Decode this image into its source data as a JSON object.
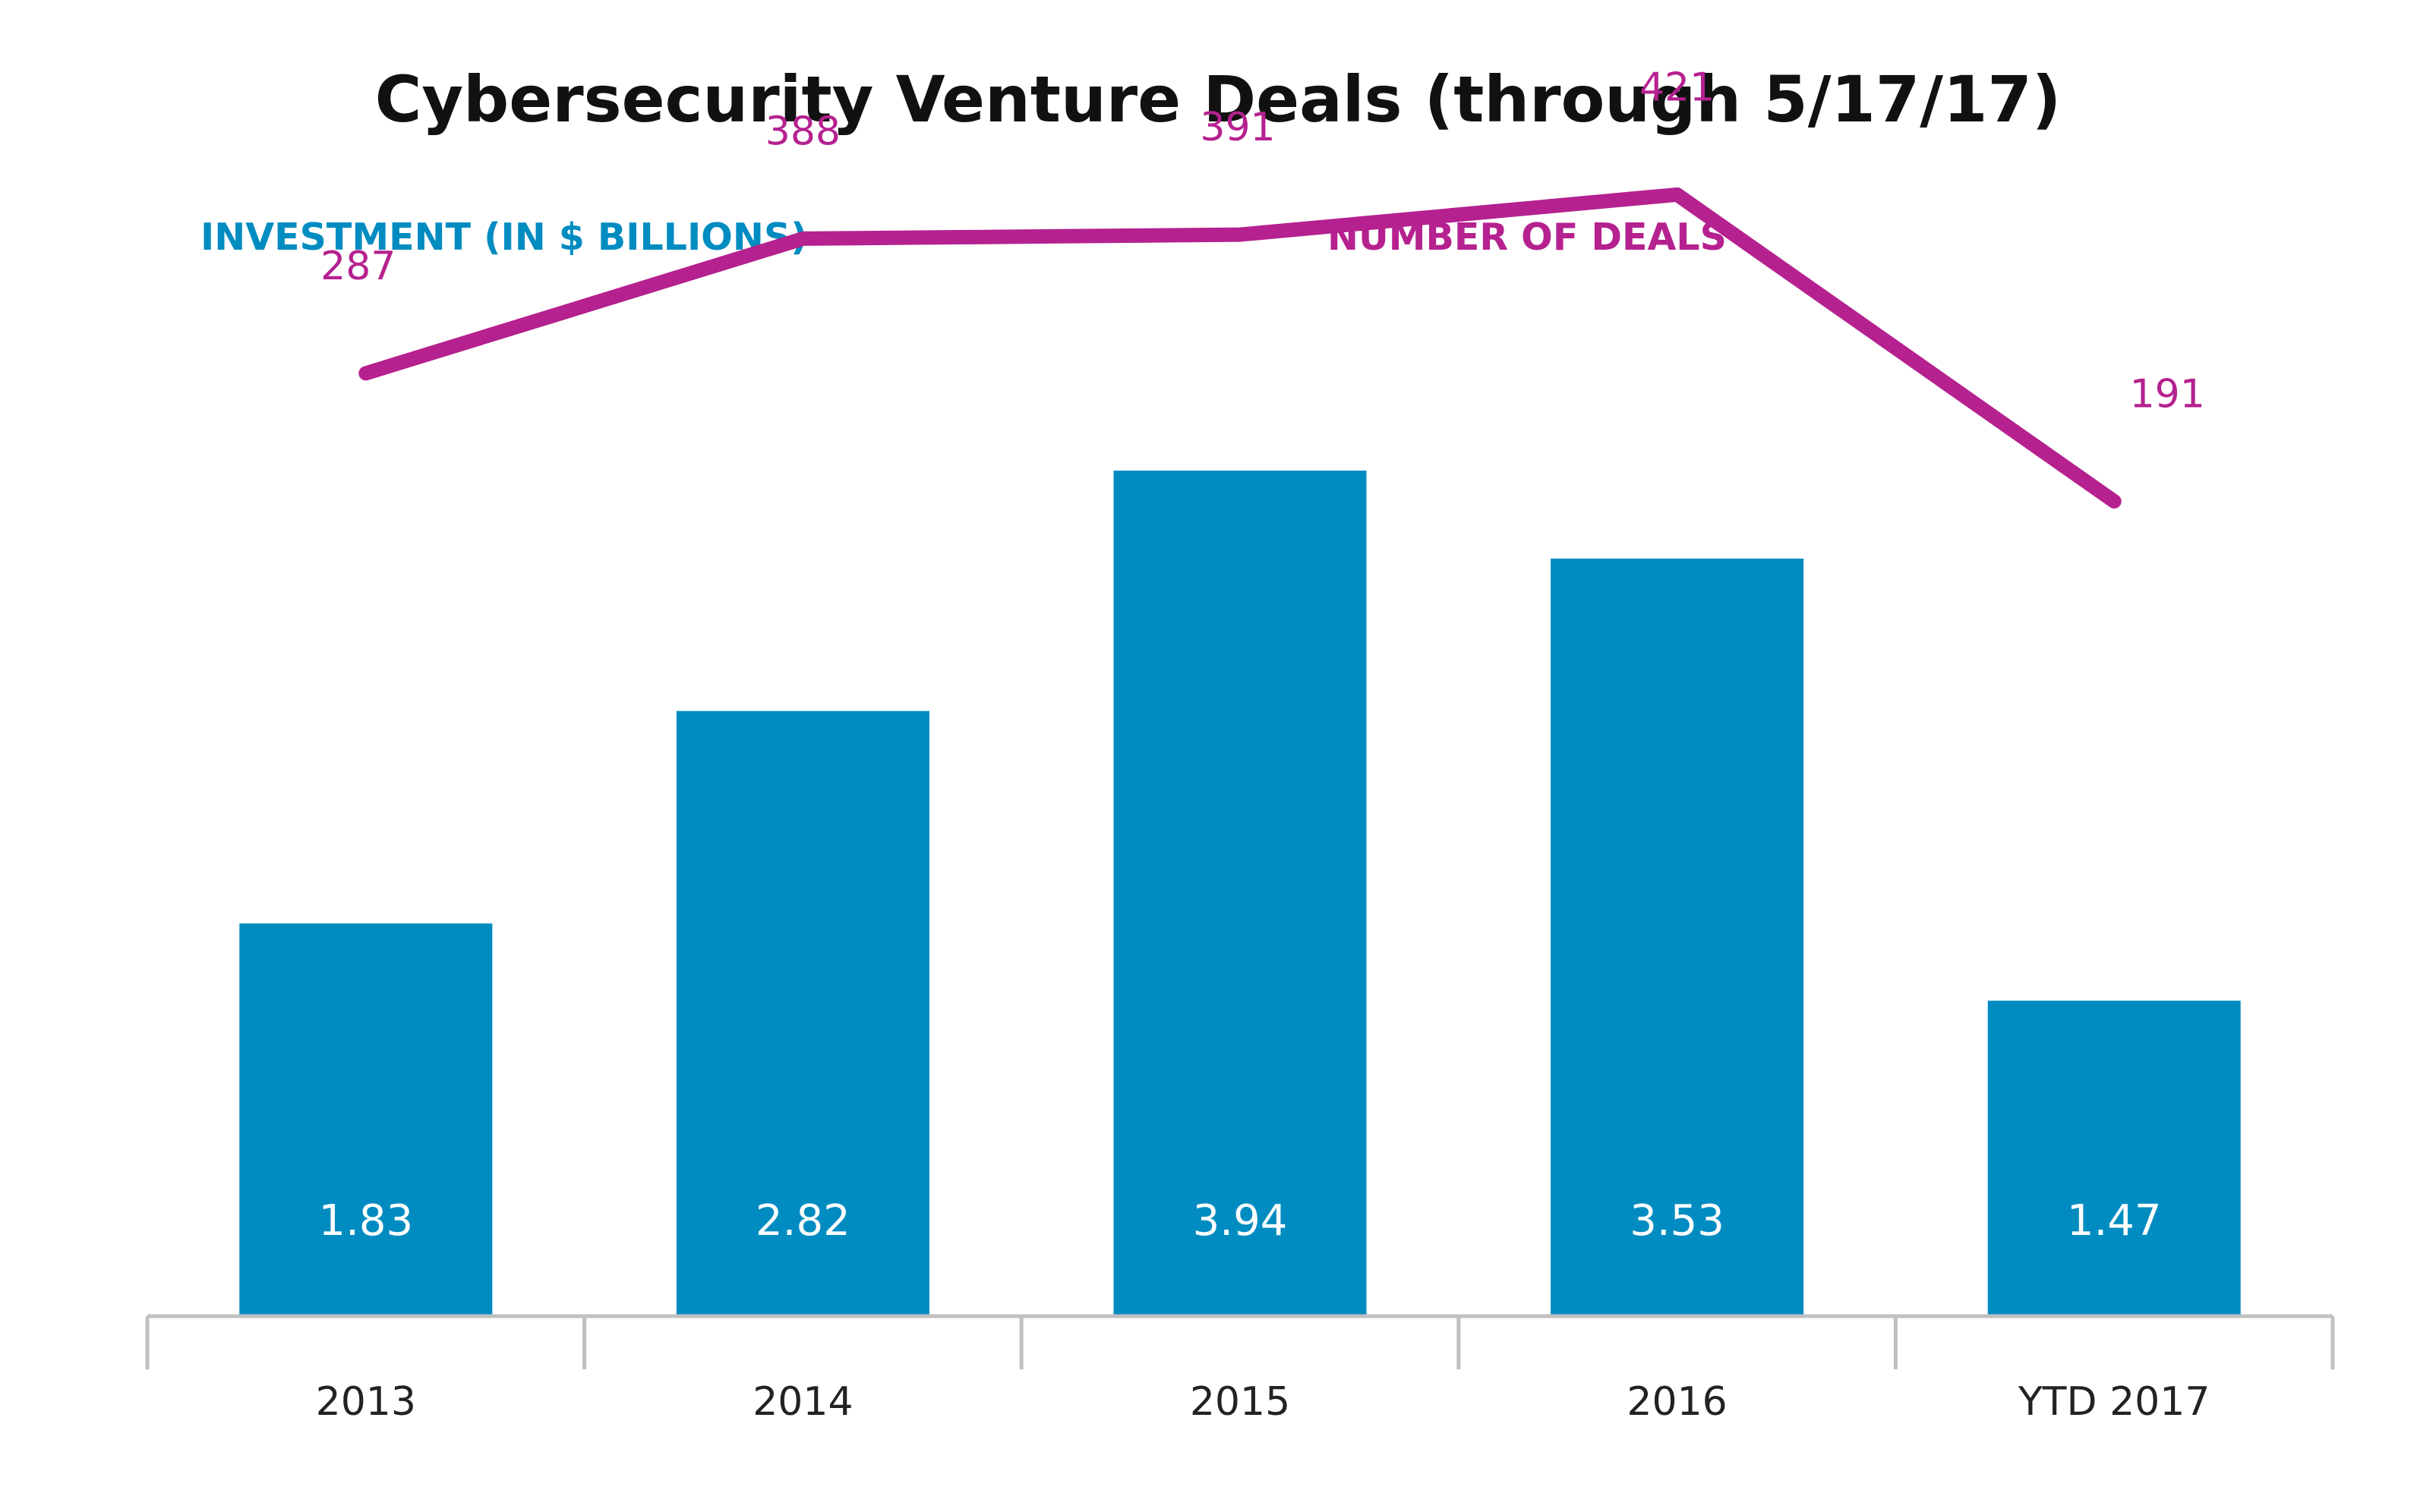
{
  "chart_data": {
    "type": "bar",
    "title": "Cybersecurity Venture Deals (through 5/17/17)",
    "categories": [
      "2013",
      "2014",
      "2015",
      "2016",
      "YTD 2017"
    ],
    "series": [
      {
        "name": "INVESTMENT (IN $ BILLIONS)",
        "type": "bar",
        "values": [
          1.83,
          2.82,
          3.94,
          3.53,
          1.47
        ],
        "color": "#008cc1"
      },
      {
        "name": "NUMBER OF DEALS",
        "type": "line",
        "values": [
          287,
          388,
          391,
          421,
          191
        ],
        "color": "#b5218f"
      }
    ],
    "bar_value_labels": [
      "1.83",
      "2.82",
      "3.94",
      "3.53",
      "1.47"
    ],
    "line_value_labels": [
      "287",
      "388",
      "391",
      "421",
      "191"
    ],
    "bar_axis_range": [
      0,
      4.5
    ],
    "line_axis_range": [
      -420,
      510
    ],
    "legend_position": "top",
    "grid": false,
    "xlabel": "",
    "ylabel": "",
    "axis_color": "#c0c0c0"
  }
}
